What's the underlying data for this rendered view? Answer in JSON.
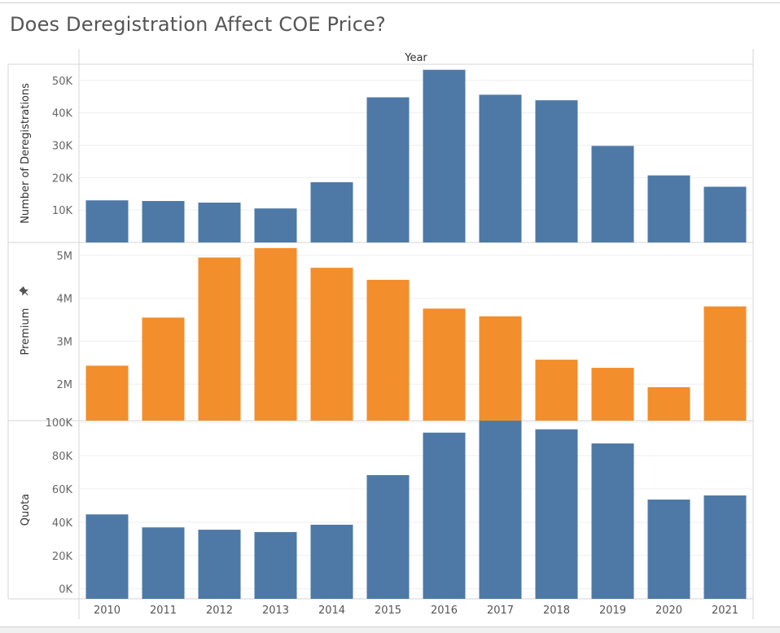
{
  "title": "Does Deregistration Affect COE Price?",
  "chart_data": {
    "type": "bar",
    "column_header": "Year",
    "categories": [
      "2010",
      "2011",
      "2012",
      "2013",
      "2014",
      "2015",
      "2016",
      "2017",
      "2018",
      "2019",
      "2020",
      "2021"
    ],
    "panels": [
      {
        "ylabel": "Number of Deregistrations",
        "color": "#4e79a7",
        "ylim": [
          0,
          55000
        ],
        "ticks": [
          {
            "v": 10000,
            "label": "10K"
          },
          {
            "v": 20000,
            "label": "20K"
          },
          {
            "v": 30000,
            "label": "30K"
          },
          {
            "v": 40000,
            "label": "40K"
          },
          {
            "v": 50000,
            "label": "50K"
          }
        ],
        "values": [
          13000,
          12800,
          12300,
          10500,
          18600,
          44800,
          53300,
          45600,
          43900,
          29800,
          20700,
          17200
        ],
        "pinned": false
      },
      {
        "ylabel": "Premium",
        "color": "#f28e2b",
        "ylim": [
          1150000,
          5300000
        ],
        "ticks": [
          {
            "v": 2000000,
            "label": "2M"
          },
          {
            "v": 3000000,
            "label": "3M"
          },
          {
            "v": 4000000,
            "label": "4M"
          },
          {
            "v": 5000000,
            "label": "5M"
          }
        ],
        "values": [
          2430000,
          3550000,
          4950000,
          5170000,
          4710000,
          4430000,
          3760000,
          3580000,
          2570000,
          2380000,
          1930000,
          3810000
        ],
        "pinned": true
      },
      {
        "ylabel": "Quota",
        "color": "#4e79a7",
        "ylim": [
          -6000,
          101000
        ],
        "ticks": [
          {
            "v": 0,
            "label": "0K"
          },
          {
            "v": 20000,
            "label": "20K"
          },
          {
            "v": 40000,
            "label": "40K"
          },
          {
            "v": 60000,
            "label": "60K"
          },
          {
            "v": 80000,
            "label": "80K"
          },
          {
            "v": 100000,
            "label": "100K"
          }
        ],
        "values": [
          44700,
          36900,
          35500,
          34100,
          38500,
          68300,
          93800,
          101000,
          95800,
          87300,
          53600,
          56100
        ],
        "pinned": false
      }
    ]
  }
}
